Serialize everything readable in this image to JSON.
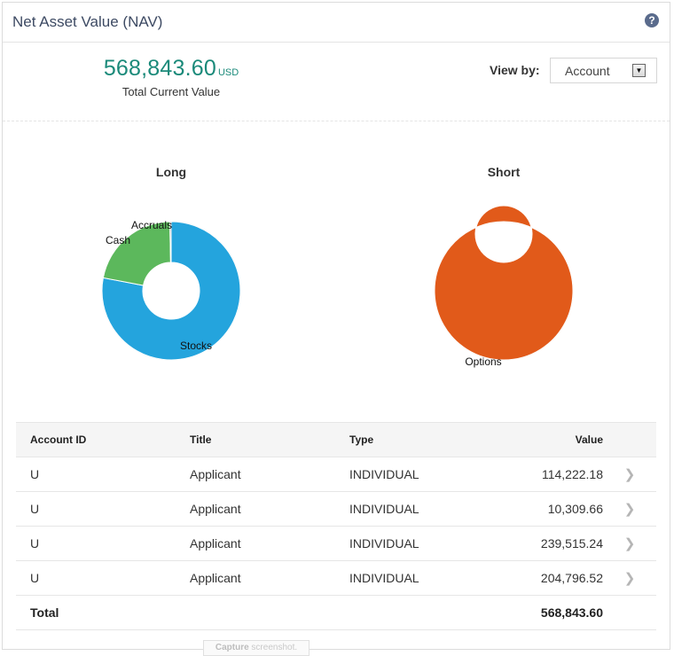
{
  "header": {
    "title": "Net Asset Value (NAV)",
    "help_icon": "question-circle-icon"
  },
  "summary": {
    "total_value": "568,843.60",
    "currency": "USD",
    "caption": "Total Current Value",
    "view_by_label": "View by:",
    "view_by_value": "Account"
  },
  "chart_data": [
    {
      "type": "pie",
      "title": "Long",
      "labels": [
        "Stocks",
        "Cash",
        "Accruals"
      ],
      "values": [
        78,
        21.7,
        0.3
      ],
      "colors": [
        "#24a4dd",
        "#5cb85c",
        "#7f7f7f"
      ],
      "donut": true
    },
    {
      "type": "pie",
      "title": "Short",
      "labels": [
        "Options"
      ],
      "values": [
        100
      ],
      "colors": [
        "#e15a1a"
      ],
      "donut": true
    }
  ],
  "table": {
    "columns": [
      "Account ID",
      "Title",
      "Type",
      "Value"
    ],
    "rows": [
      {
        "account_id": "U",
        "title": "Applicant",
        "type": "INDIVIDUAL",
        "value": "114,222.18"
      },
      {
        "account_id": "U",
        "title": "Applicant",
        "type": "INDIVIDUAL",
        "value": "10,309.66"
      },
      {
        "account_id": "U",
        "title": "Applicant",
        "type": "INDIVIDUAL",
        "value": "239,515.24"
      },
      {
        "account_id": "U",
        "title": "Applicant",
        "type": "INDIVIDUAL",
        "value": "204,796.52"
      }
    ],
    "total_label": "Total",
    "total_value": "568,843.60",
    "row_icon": "chevron-right-icon"
  },
  "capture_button": {
    "label_bold": "Capture",
    "label_rest": " screenshot."
  }
}
